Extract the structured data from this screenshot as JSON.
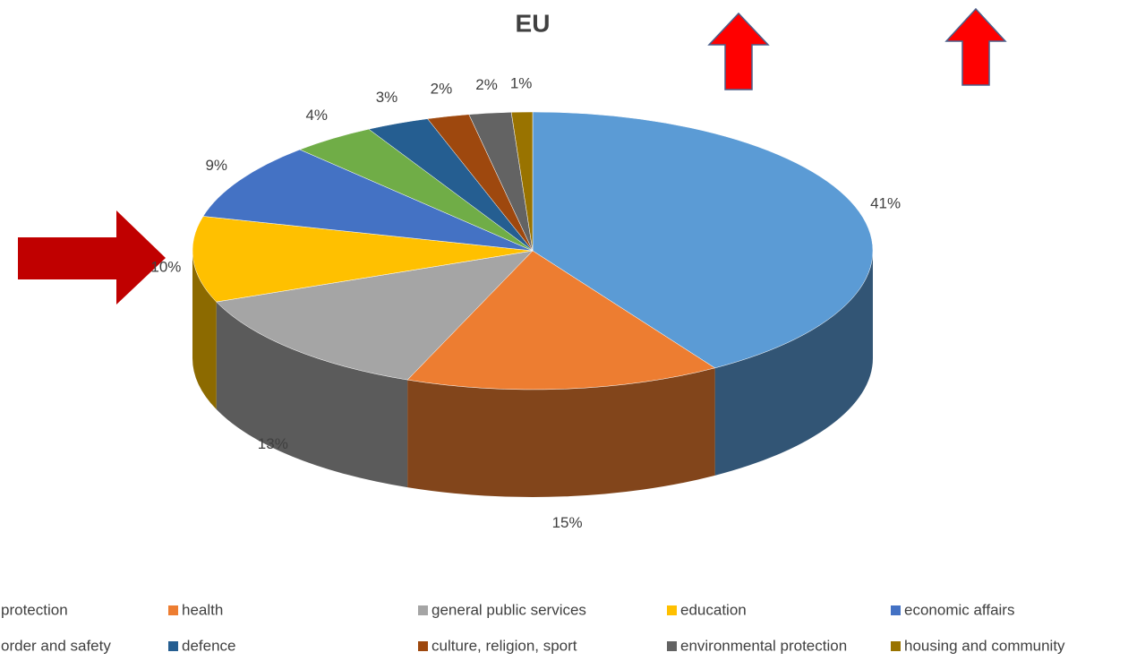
{
  "chart_data": {
    "type": "pie",
    "title": "EU",
    "categories": [
      "protection",
      "health",
      "general public services",
      "education",
      "economic affairs",
      "order and safety",
      "defence",
      "culture, religion, sport",
      "environmental protection",
      "housing and community"
    ],
    "values": [
      41,
      15,
      13,
      10,
      9,
      4,
      3,
      2,
      2,
      1
    ],
    "value_labels": [
      "41%",
      "15%",
      "13%",
      "10%",
      "9%",
      "4%",
      "3%",
      "2%",
      "2%",
      "1%"
    ],
    "colors": [
      "#5b9bd5",
      "#ed7d31",
      "#a5a5a5",
      "#ffc000",
      "#4472c4",
      "#70ad47",
      "#255e91",
      "#9e480e",
      "#636363",
      "#997300"
    ],
    "legend": "bottom"
  }
}
